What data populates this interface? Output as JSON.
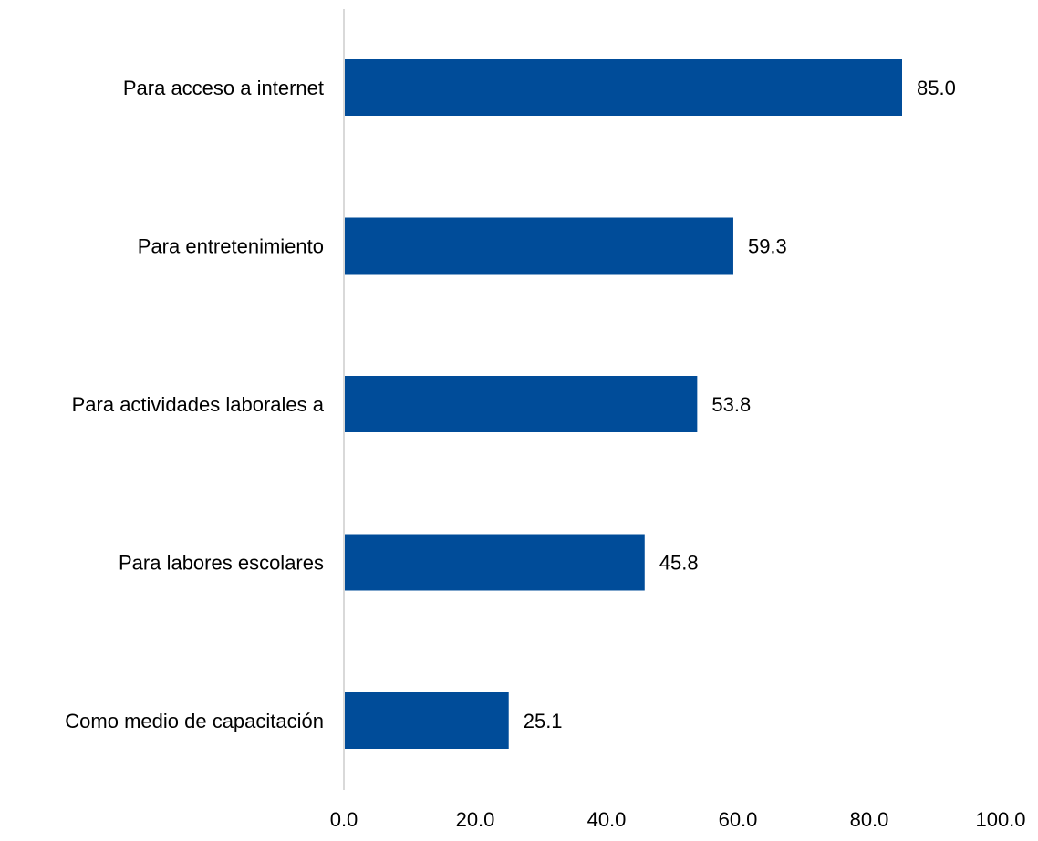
{
  "chart_data": {
    "type": "bar",
    "orientation": "horizontal",
    "categories": [
      "Para acceso a internet",
      "Para entretenimiento",
      "Para actividades laborales a",
      "Para labores escolares",
      "Como medio de capacitación"
    ],
    "values": [
      85.0,
      59.3,
      53.8,
      45.8,
      25.1
    ],
    "value_labels": [
      "85.0",
      "59.3",
      "53.8",
      "45.8",
      "25.1"
    ],
    "xlim": [
      0,
      100
    ],
    "xticks": [
      0,
      20,
      40,
      60,
      80,
      100
    ],
    "xtick_labels": [
      "0.0",
      "20.0",
      "40.0",
      "60.0",
      "80.0",
      "100.0"
    ],
    "title": "",
    "xlabel": "",
    "ylabel": "",
    "grid": false,
    "legend": "none",
    "bar_color": "#004C99",
    "axis_color": "#D9D9D9"
  }
}
